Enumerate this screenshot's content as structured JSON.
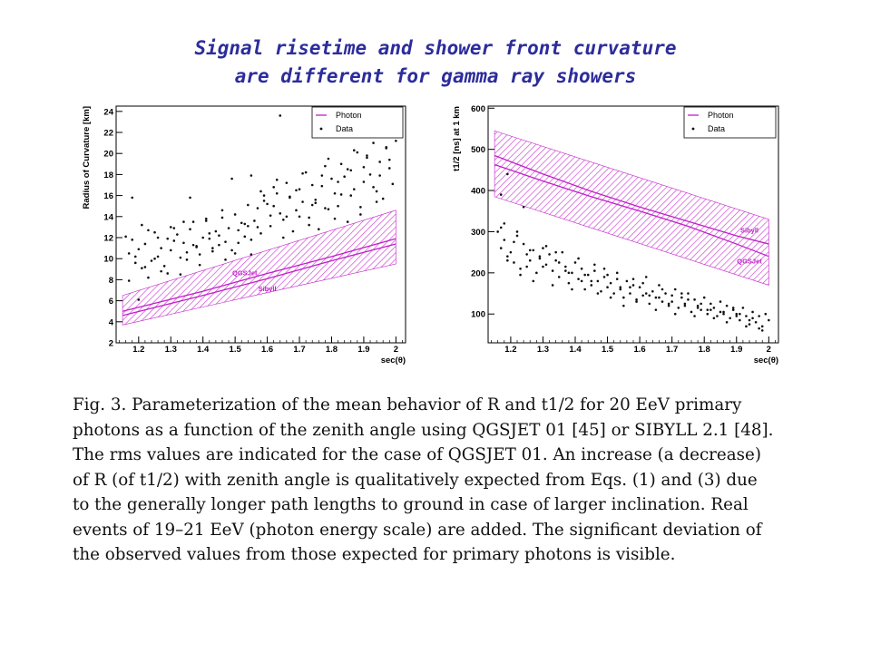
{
  "slide": {
    "title_line1": "Signal risetime and shower front curvature",
    "title_line2": "are different for gamma ray showers"
  },
  "caption": {
    "lines": [
      "Fig. 3. Parameterization of the mean behavior of R and t1/2 for 20 EeV primary",
      "photons as a function of the zenith angle using QGSJET 01 [45] or SIBYLL 2.1 [48].",
      "The rms values are indicated for the case of QGSJET 01. An increase (a decrease)",
      "of R (of t1/2) with zenith angle is qualitatively expected from Eqs. (1) and (3) due",
      "to the generally longer path lengths to ground in case of larger inclination. Real",
      "events of 19–21 EeV (photon energy scale) are added. The significant deviation of",
      "the observed values from those expected for primary photons is visible."
    ]
  },
  "colors": {
    "photon": "#c020c8",
    "data": "#111111",
    "title": "#2c2c9c"
  },
  "chart_data": [
    {
      "type": "scatter",
      "title": "",
      "xlabel": "sec(θ)",
      "ylabel": "Radius of Curvature [km]",
      "xlim": [
        1.13,
        2.03
      ],
      "ylim": [
        2,
        24.5
      ],
      "xticks": [
        1.2,
        1.3,
        1.4,
        1.5,
        1.6,
        1.7,
        1.8,
        1.9,
        2
      ],
      "xtick_labels": [
        "1.2",
        "1.3",
        "1.4",
        "1.5",
        "1.6",
        "1.7",
        "1.8",
        "1.9",
        "2"
      ],
      "yticks": [
        2,
        4,
        6,
        8,
        10,
        12,
        14,
        16,
        18,
        20,
        22,
        24
      ],
      "ytick_labels": [
        "2",
        "4",
        "6",
        "8",
        "10",
        "12",
        "14",
        "16",
        "18",
        "20",
        "22",
        "24"
      ],
      "legend": {
        "position": "top-right",
        "entries": [
          "Photon",
          "Data"
        ]
      },
      "band": {
        "x": [
          1.15,
          2.0
        ],
        "lower": [
          3.7,
          9.5
        ],
        "upper": [
          6.5,
          14.6
        ]
      },
      "series": [
        {
          "name": "QGSJet",
          "kind": "line",
          "x": [
            1.15,
            1.4,
            1.6,
            1.8,
            2.0
          ],
          "y": [
            5.0,
            6.9,
            8.6,
            10.2,
            11.9
          ]
        },
        {
          "name": "Sibyll",
          "kind": "line",
          "x": [
            1.15,
            1.4,
            1.6,
            1.8,
            2.0
          ],
          "y": [
            4.6,
            6.5,
            8.1,
            9.8,
            11.4
          ]
        }
      ],
      "data_x": [
        1.16,
        1.17,
        1.18,
        1.19,
        1.2,
        1.21,
        1.22,
        1.23,
        1.24,
        1.25,
        1.26,
        1.27,
        1.28,
        1.29,
        1.3,
        1.31,
        1.32,
        1.33,
        1.34,
        1.35,
        1.36,
        1.37,
        1.38,
        1.39,
        1.4,
        1.41,
        1.42,
        1.43,
        1.44,
        1.45,
        1.46,
        1.47,
        1.48,
        1.49,
        1.5,
        1.51,
        1.52,
        1.53,
        1.54,
        1.55,
        1.56,
        1.57,
        1.58,
        1.59,
        1.6,
        1.61,
        1.62,
        1.63,
        1.64,
        1.65,
        1.66,
        1.67,
        1.68,
        1.69,
        1.7,
        1.71,
        1.72,
        1.73,
        1.74,
        1.75,
        1.76,
        1.77,
        1.78,
        1.79,
        1.8,
        1.81,
        1.82,
        1.83,
        1.84,
        1.85,
        1.86,
        1.87,
        1.88,
        1.89,
        1.9,
        1.91,
        1.92,
        1.93,
        1.94,
        1.95,
        1.96,
        1.97,
        1.98,
        1.99,
        2.0,
        1.17,
        1.19,
        1.21,
        1.23,
        1.25,
        1.27,
        1.29,
        1.31,
        1.33,
        1.35,
        1.37,
        1.39,
        1.41,
        1.43,
        1.45,
        1.47,
        1.49,
        1.51,
        1.53,
        1.55,
        1.57,
        1.59,
        1.61,
        1.63,
        1.65,
        1.67,
        1.69,
        1.71,
        1.73,
        1.75,
        1.77,
        1.79,
        1.81,
        1.83,
        1.85,
        1.87,
        1.89,
        1.91,
        1.93,
        1.95,
        1.97,
        1.18,
        1.22,
        1.26,
        1.3,
        1.34,
        1.38,
        1.42,
        1.46,
        1.5,
        1.54,
        1.58,
        1.62,
        1.66,
        1.7,
        1.74,
        1.78,
        1.82,
        1.86,
        1.9,
        1.94,
        1.98,
        1.64,
        1.8,
        1.92,
        1.2,
        1.36,
        1.55
      ],
      "data_y": [
        12.1,
        10.5,
        11.8,
        9.6,
        10.9,
        13.2,
        11.4,
        8.2,
        9.8,
        12.5,
        10.2,
        11.0,
        9.3,
        8.6,
        13.0,
        11.7,
        12.3,
        10.1,
        11.5,
        9.9,
        12.8,
        13.5,
        11.1,
        10.4,
        12.0,
        13.8,
        11.9,
        10.7,
        12.6,
        11.3,
        13.9,
        11.6,
        12.9,
        10.8,
        14.2,
        12.7,
        13.4,
        12.1,
        15.1,
        11.8,
        13.6,
        14.8,
        12.4,
        16.0,
        15.2,
        13.1,
        16.8,
        17.5,
        14.3,
        13.7,
        17.2,
        15.8,
        12.6,
        16.5,
        14.0,
        15.4,
        18.2,
        13.9,
        17.0,
        15.6,
        12.8,
        16.9,
        18.8,
        14.7,
        17.6,
        16.2,
        15.0,
        19.0,
        17.8,
        13.5,
        18.4,
        16.6,
        20.1,
        14.9,
        17.3,
        19.6,
        18.0,
        21.0,
        16.4,
        19.2,
        15.7,
        20.5,
        18.6,
        17.1,
        21.2,
        7.9,
        10.2,
        9.1,
        12.7,
        10.0,
        8.8,
        11.9,
        12.9,
        8.5,
        10.6,
        11.3,
        9.4,
        13.6,
        11.0,
        12.2,
        9.9,
        17.6,
        11.5,
        13.3,
        10.4,
        13.0,
        15.5,
        14.1,
        16.2,
        12.0,
        15.9,
        14.6,
        18.1,
        13.2,
        15.3,
        17.9,
        19.5,
        13.8,
        16.1,
        18.5,
        20.3,
        14.2,
        19.8,
        16.8,
        17.9,
        20.6,
        15.8,
        9.2,
        12.0,
        10.8,
        13.5,
        11.2,
        12.4,
        14.6,
        10.5,
        13.1,
        16.4,
        15.0,
        14.0,
        16.6,
        15.1,
        14.8,
        17.3,
        16.0,
        18.7,
        15.4,
        19.4,
        23.6,
        22.0,
        21.8,
        6.1,
        15.8,
        17.9
      ]
    },
    {
      "type": "scatter",
      "title": "",
      "xlabel": "sec(θ)",
      "ylabel": "t1/2 [ns] at 1 km",
      "xlim": [
        1.13,
        2.03
      ],
      "ylim": [
        30,
        605
      ],
      "xticks": [
        1.2,
        1.3,
        1.4,
        1.5,
        1.6,
        1.7,
        1.8,
        1.9,
        2
      ],
      "xtick_labels": [
        "1.2",
        "1.3",
        "1.4",
        "1.5",
        "1.6",
        "1.7",
        "1.8",
        "1.9",
        "2"
      ],
      "yticks": [
        100,
        200,
        300,
        400,
        500,
        600
      ],
      "ytick_labels": [
        "100",
        "200",
        "300",
        "400",
        "500",
        "600"
      ],
      "legend": {
        "position": "top-right",
        "entries": [
          "Photon",
          "Data"
        ]
      },
      "band": {
        "x": [
          1.15,
          2.0
        ],
        "lower": [
          385,
          170
        ],
        "upper": [
          545,
          330
        ]
      },
      "series": [
        {
          "name": "Sibyll",
          "kind": "line",
          "x": [
            1.15,
            1.3,
            1.45,
            1.6,
            1.75,
            1.9,
            2.0
          ],
          "y": [
            485,
            440,
            398,
            360,
            325,
            290,
            270
          ]
        },
        {
          "name": "QGSJet",
          "kind": "line",
          "x": [
            1.15,
            1.3,
            1.45,
            1.6,
            1.75,
            1.9,
            2.0
          ],
          "y": [
            463,
            423,
            385,
            350,
            313,
            270,
            240
          ]
        }
      ],
      "data_x": [
        1.16,
        1.17,
        1.18,
        1.19,
        1.2,
        1.21,
        1.22,
        1.23,
        1.24,
        1.25,
        1.26,
        1.27,
        1.28,
        1.29,
        1.3,
        1.31,
        1.32,
        1.33,
        1.34,
        1.35,
        1.36,
        1.37,
        1.38,
        1.39,
        1.4,
        1.41,
        1.42,
        1.43,
        1.44,
        1.45,
        1.46,
        1.47,
        1.48,
        1.49,
        1.5,
        1.51,
        1.52,
        1.53,
        1.54,
        1.55,
        1.56,
        1.57,
        1.58,
        1.59,
        1.6,
        1.61,
        1.62,
        1.63,
        1.64,
        1.65,
        1.66,
        1.67,
        1.68,
        1.69,
        1.7,
        1.71,
        1.72,
        1.73,
        1.74,
        1.75,
        1.76,
        1.77,
        1.78,
        1.79,
        1.8,
        1.81,
        1.82,
        1.83,
        1.84,
        1.85,
        1.86,
        1.87,
        1.88,
        1.89,
        1.9,
        1.91,
        1.92,
        1.93,
        1.94,
        1.95,
        1.96,
        1.97,
        1.98,
        1.99,
        2.0,
        1.17,
        1.19,
        1.21,
        1.23,
        1.25,
        1.27,
        1.29,
        1.31,
        1.33,
        1.35,
        1.37,
        1.39,
        1.41,
        1.43,
        1.45,
        1.47,
        1.49,
        1.51,
        1.53,
        1.55,
        1.57,
        1.59,
        1.61,
        1.63,
        1.65,
        1.67,
        1.69,
        1.71,
        1.73,
        1.75,
        1.77,
        1.79,
        1.81,
        1.83,
        1.85,
        1.87,
        1.89,
        1.91,
        1.93,
        1.95,
        1.97,
        1.18,
        1.22,
        1.26,
        1.3,
        1.34,
        1.38,
        1.42,
        1.46,
        1.5,
        1.54,
        1.58,
        1.62,
        1.66,
        1.7,
        1.74,
        1.78,
        1.82,
        1.86,
        1.9,
        1.94,
        1.98,
        1.17,
        1.19,
        1.24
      ],
      "data_y": [
        300,
        260,
        280,
        240,
        250,
        225,
        300,
        210,
        270,
        245,
        230,
        255,
        200,
        235,
        260,
        220,
        245,
        205,
        230,
        190,
        250,
        215,
        175,
        200,
        225,
        185,
        210,
        160,
        195,
        170,
        205,
        180,
        155,
        190,
        165,
        175,
        150,
        200,
        160,
        140,
        180,
        150,
        170,
        135,
        165,
        145,
        190,
        125,
        155,
        140,
        170,
        130,
        150,
        120,
        145,
        160,
        115,
        140,
        125,
        150,
        105,
        135,
        120,
        110,
        140,
        100,
        125,
        115,
        95,
        130,
        105,
        120,
        90,
        110,
        100,
        85,
        115,
        95,
        75,
        105,
        80,
        95,
        70,
        100,
        85,
        310,
        230,
        275,
        195,
        215,
        180,
        240,
        265,
        170,
        225,
        205,
        160,
        235,
        195,
        180,
        150,
        210,
        140,
        185,
        120,
        165,
        130,
        175,
        145,
        110,
        160,
        125,
        100,
        150,
        135,
        95,
        125,
        110,
        90,
        105,
        80,
        115,
        100,
        70,
        90,
        65,
        320,
        290,
        255,
        215,
        250,
        200,
        180,
        220,
        195,
        165,
        185,
        150,
        140,
        130,
        120,
        115,
        110,
        100,
        95,
        85,
        60,
        390,
        440,
        360
      ]
    }
  ]
}
